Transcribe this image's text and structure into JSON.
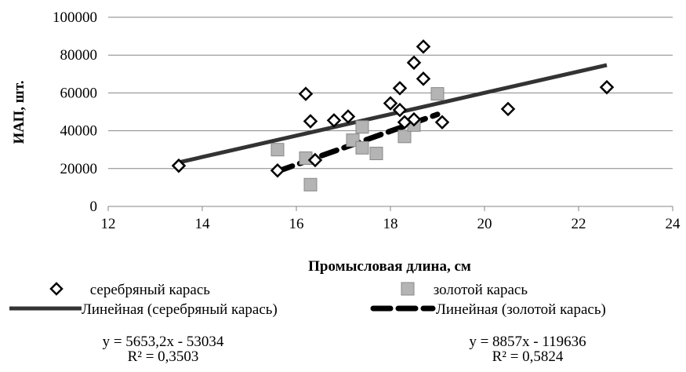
{
  "chart_data": {
    "type": "scatter",
    "xlabel": "Промысловая длина, см",
    "ylabel": "ИАП, шт.",
    "xlim": [
      12,
      24
    ],
    "ylim": [
      0,
      100000
    ],
    "x_ticks": [
      "12",
      "14",
      "16",
      "18",
      "20",
      "22",
      "24"
    ],
    "y_ticks": [
      "0",
      "20000",
      "40000",
      "60000",
      "80000",
      "100000"
    ],
    "grid": "horizontal",
    "legend_position": "bottom",
    "series": [
      {
        "name": "серебряный карась",
        "marker": "diamond",
        "color": "#000000",
        "points": [
          [
            13.5,
            21500
          ],
          [
            15.6,
            19000
          ],
          [
            16.2,
            59500
          ],
          [
            16.3,
            45000
          ],
          [
            16.4,
            24500
          ],
          [
            16.8,
            45500
          ],
          [
            17.1,
            47500
          ],
          [
            18.0,
            54500
          ],
          [
            18.2,
            51000
          ],
          [
            18.2,
            62500
          ],
          [
            18.3,
            44500
          ],
          [
            18.5,
            76000
          ],
          [
            18.5,
            46000
          ],
          [
            18.7,
            67500
          ],
          [
            18.7,
            84500
          ],
          [
            19.1,
            44500
          ],
          [
            20.5,
            51500
          ],
          [
            22.6,
            63000
          ]
        ]
      },
      {
        "name": "золотой карась",
        "marker": "square",
        "color": "#b4b4b4",
        "points": [
          [
            15.6,
            30000
          ],
          [
            16.2,
            25500
          ],
          [
            16.3,
            11500
          ],
          [
            17.2,
            35000
          ],
          [
            17.4,
            42000
          ],
          [
            17.4,
            31000
          ],
          [
            17.7,
            28000
          ],
          [
            18.3,
            37000
          ],
          [
            18.5,
            43000
          ],
          [
            19.0,
            59500
          ]
        ]
      }
    ],
    "trendlines": [
      {
        "name": "Линейная (серебряный карась)",
        "style": "solid",
        "slope": 5653.2,
        "intercept": -53034,
        "x_range": [
          13.5,
          22.6
        ]
      },
      {
        "name": "Линейная (золотой карась)",
        "style": "dashed",
        "slope": 8857,
        "intercept": -119636,
        "x_range": [
          15.6,
          19.0
        ]
      }
    ],
    "equations": [
      {
        "equation": "y = 5653,2x - 53034",
        "r2": "R² = 0,3503"
      },
      {
        "equation": "y = 8857x - 119636",
        "r2": "R² = 0,5824"
      }
    ]
  }
}
